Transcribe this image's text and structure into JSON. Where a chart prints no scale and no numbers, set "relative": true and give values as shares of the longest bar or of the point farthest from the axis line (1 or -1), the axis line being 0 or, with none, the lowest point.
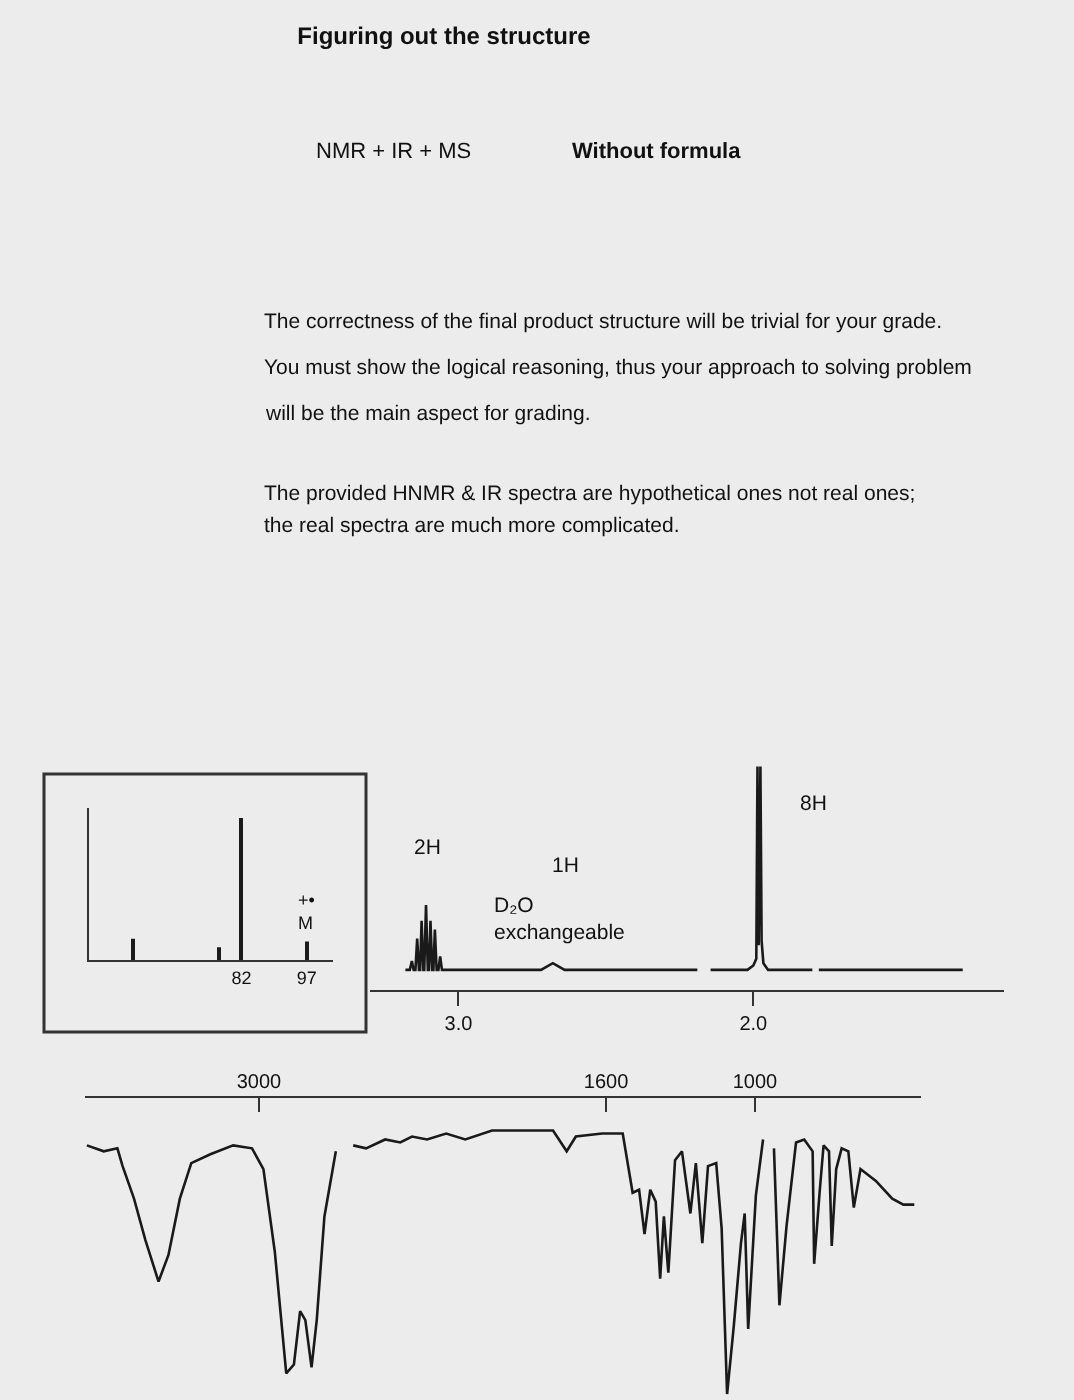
{
  "chart_data": [
    {
      "type": "other",
      "title": "Figuring out the structure",
      "annotations": [
        "NMR + IR + MS",
        "Without formula",
        "The correctness of the final product structure will be trivial for your grade.\nYou must show the logical reasoning, thus your approach to solving problem\nwill be the main aspect for grading.",
        "The provided HNMR & IR spectra are hypothetical ones not real ones;\nthe real spectra are much more complicated."
      ]
    },
    {
      "type": "bar",
      "x": [
        57,
        77,
        82,
        97
      ],
      "values": [
        0.15,
        0.09,
        1,
        0.13
      ],
      "relative": true,
      "color": "#1a1a1a",
      "xlim": [
        47,
        103
      ],
      "xticks": [
        82,
        97
      ],
      "annotations": [
        {
          "text": "+•\nM",
          "x": 97,
          "y": 0.13
        }
      ]
    },
    {
      "type": "line",
      "x": [
        3.18,
        3.165,
        3.158,
        3.152,
        3.146,
        3.14,
        3.134,
        3.13,
        3.125,
        3.119,
        3.116,
        3.11,
        3.104,
        3.1,
        3.095,
        3.089,
        3.085,
        3.08,
        3.074,
        3.068,
        3.062,
        3.056,
        2.72,
        2.68,
        2.64,
        2.19,
        2.17,
        2.145,
        2.02,
        2.0,
        1.99,
        1.986,
        1.982,
        1.976,
        1.972,
        1.966,
        1.95,
        1.8,
        1.79,
        1.778,
        1.29
      ],
      "values": [
        0.09,
        0.09,
        0.13,
        0.09,
        0.09,
        0.23,
        0.09,
        0.09,
        0.31,
        0.09,
        0.09,
        0.38,
        0.09,
        0.09,
        0.31,
        0.09,
        0.09,
        0.27,
        0.09,
        0.09,
        0.15,
        0.09,
        0.09,
        0.12,
        0.09,
        0.09,
        null,
        0.09,
        0.09,
        0.11,
        0.14,
        1.0,
        0.2,
        1.0,
        0.22,
        0.12,
        0.09,
        0.09,
        null,
        0.09,
        0.09
      ],
      "relative": true,
      "color": "#1a1a1a",
      "xlim": [
        3.3,
        1.15
      ],
      "xticks": [
        {
          "value": 3,
          "label": "3.0"
        },
        {
          "value": 2,
          "label": "2.0"
        }
      ],
      "annotations": [
        {
          "text": "2H",
          "x": 3.11,
          "y": 0.38
        },
        "1H",
        {
          "text": "D₂O\nexchangeable",
          "x": 2.68,
          "y": 0.12
        },
        {
          "text": "8H",
          "x": 1.986,
          "y": 1.0
        }
      ]
    },
    {
      "type": "line",
      "x": [
        3694,
        3626,
        3571,
        3550,
        3504,
        3458,
        3405,
        3365,
        3319,
        3273,
        3196,
        3104,
        3028,
        2982,
        2936,
        2890,
        2859,
        2834,
        2813,
        2788,
        2767,
        2736,
        2690,
        2655,
        2620,
        2568,
        2491,
        2430,
        2383,
        2322,
        2245,
        2168,
        2060,
        1814,
        1759,
        1722,
        1616,
        1600,
        1533,
        1493,
        1467,
        1445,
        1422,
        1400,
        1382,
        1367,
        1349,
        1322,
        1294,
        1260,
        1238,
        1212,
        1189,
        1156,
        1134,
        1112,
        1085,
        1056,
        1041,
        1027,
        996,
        967,
        945,
        923,
        901,
        872,
        834,
        801,
        767,
        761,
        739,
        723,
        701,
        690,
        672,
        650,
        623,
        601,
        574,
        512,
        446,
        401,
        357
      ],
      "values": [
        -0.16,
        -0.18,
        -0.17,
        -0.23,
        -0.34,
        -0.48,
        -0.62,
        -0.53,
        -0.34,
        -0.22,
        -0.19,
        -0.16,
        -0.17,
        -0.24,
        -0.52,
        -0.93,
        -0.9,
        -0.72,
        -0.75,
        -0.91,
        -0.75,
        -0.4,
        -0.18,
        null,
        -0.16,
        -0.17,
        -0.14,
        -0.15,
        -0.13,
        -0.14,
        -0.12,
        -0.14,
        -0.11,
        -0.11,
        -0.18,
        -0.13,
        -0.12,
        -0.12,
        -0.12,
        -0.32,
        -0.31,
        -0.46,
        -0.31,
        -0.35,
        -0.61,
        -0.4,
        -0.59,
        -0.21,
        -0.18,
        -0.39,
        -0.22,
        -0.49,
        -0.23,
        -0.22,
        -0.44,
        -1.0,
        -0.77,
        -0.49,
        -0.39,
        -0.78,
        -0.33,
        -0.14,
        null,
        -0.17,
        -0.7,
        -0.43,
        -0.15,
        -0.14,
        -0.18,
        -0.56,
        -0.32,
        -0.16,
        -0.18,
        -0.5,
        -0.24,
        -0.17,
        -0.18,
        -0.37,
        -0.24,
        -0.28,
        -0.34,
        -0.36,
        -0.36
      ],
      "relative": true,
      "color": "#1a1a1a",
      "xlim": [
        3700,
        330
      ],
      "xticks": [
        3000,
        1600,
        1000
      ]
    }
  ]
}
